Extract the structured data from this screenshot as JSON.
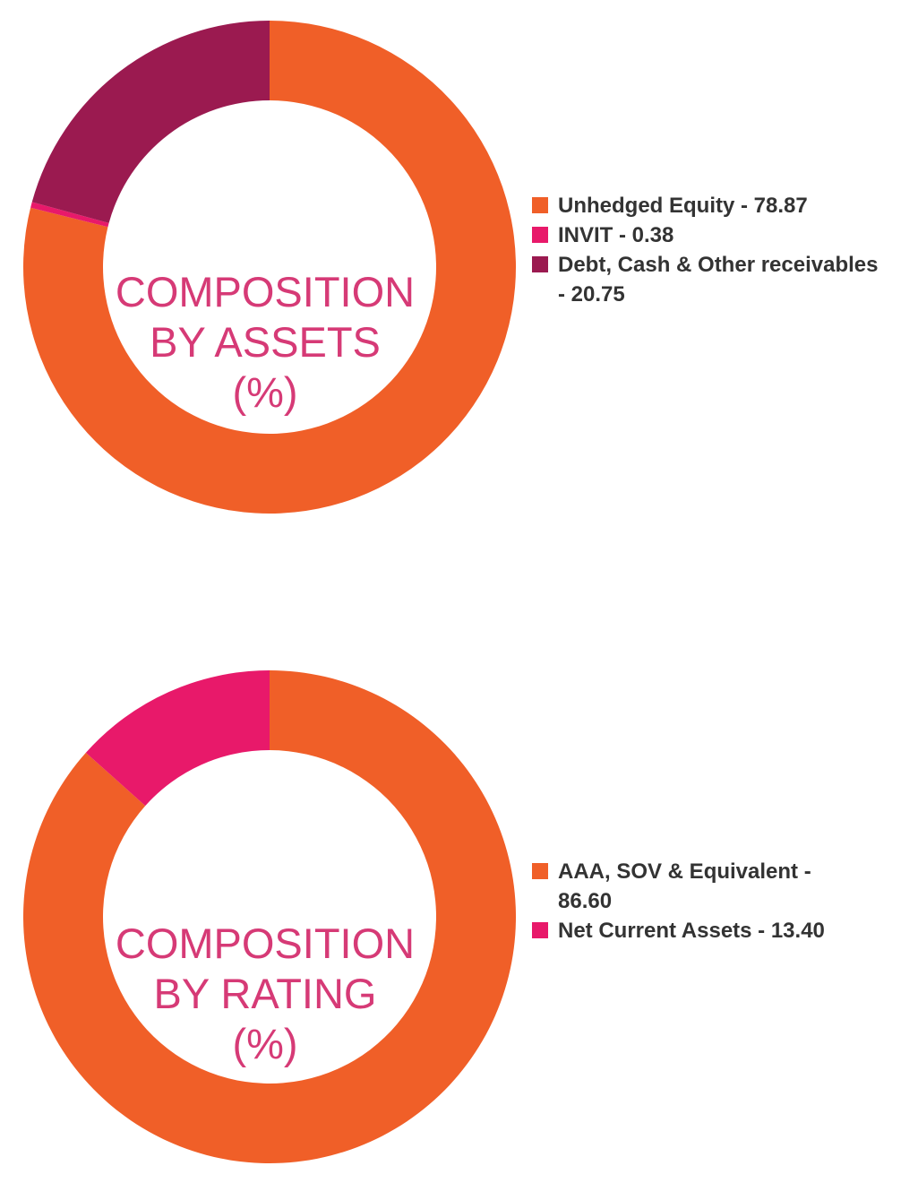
{
  "chart_data": [
    {
      "type": "pie",
      "title_lines": [
        "COMPOSITION",
        "BY ASSETS",
        "(%)"
      ],
      "slices": [
        {
          "label_lines": [
            "Unhedged Equity - 78.87"
          ],
          "value": 78.87,
          "color": "#f05f28"
        },
        {
          "label_lines": [
            "INVIT - 0.38"
          ],
          "value": 0.38,
          "color": "#e8196a"
        },
        {
          "label_lines": [
            "Debt, Cash & Other receivables",
            "- 20.75"
          ],
          "value": 20.75,
          "color": "#9b1a50"
        }
      ]
    },
    {
      "type": "pie",
      "title_lines": [
        "COMPOSITION",
        "BY RATING",
        "(%)"
      ],
      "slices": [
        {
          "label_lines": [
            "AAA, SOV & Equivalent -",
            "86.60"
          ],
          "value": 86.6,
          "color": "#f05f28"
        },
        {
          "label_lines": [
            "Net Current Assets - 13.40"
          ],
          "value": 13.4,
          "color": "#e8196a"
        }
      ]
    }
  ]
}
